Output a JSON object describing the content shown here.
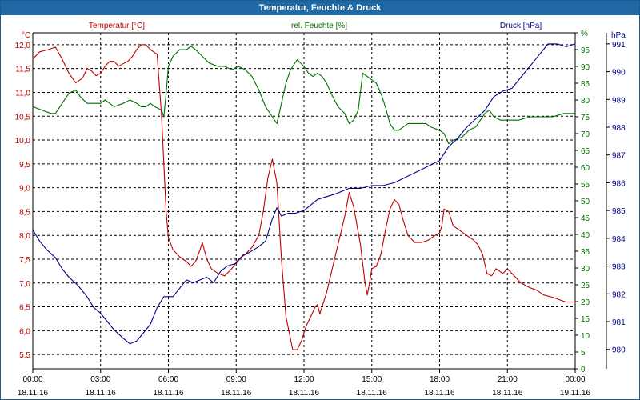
{
  "window": {
    "title": "Temperatur, Feuchte & Druck"
  },
  "colors": {
    "temperature": "#c00000",
    "humidity": "#007000",
    "pressure": "#00008b",
    "grid": "#000000",
    "title_bar": "#1f6aa5"
  },
  "chart_data": {
    "type": "line",
    "title": "Temperatur, Feuchte & Druck",
    "x": {
      "ticks": [
        {
          "t": 0,
          "time": "00:00",
          "date": "18.11.16"
        },
        {
          "t": 3,
          "time": "03:00",
          "date": "18.11.16"
        },
        {
          "t": 6,
          "time": "06:00",
          "date": "18.11.16"
        },
        {
          "t": 9,
          "time": "09:00",
          "date": "18.11.16"
        },
        {
          "t": 12,
          "time": "12:00",
          "date": "18.11.16"
        },
        {
          "t": 15,
          "time": "15:00",
          "date": "18.11.16"
        },
        {
          "t": 18,
          "time": "18:00",
          "date": "18.11.16"
        },
        {
          "t": 21,
          "time": "21:00",
          "date": "18.11.16"
        },
        {
          "t": 24,
          "time": "00:00",
          "date": "19.11.16"
        }
      ],
      "range": [
        0,
        24
      ],
      "unit": "h"
    },
    "axes": {
      "temperature": {
        "label": "Temperatur [°C]",
        "unit": "°C",
        "min": 5.2,
        "max": 12.25,
        "ticks": [
          5.5,
          6.0,
          6.5,
          7.0,
          7.5,
          8.0,
          8.5,
          9.0,
          9.5,
          10.0,
          10.5,
          11.0,
          11.5,
          12.0
        ],
        "tick_labels": [
          "5,5",
          "6,0",
          "6,5",
          "7,0",
          "7,5",
          "8,0",
          "8,5",
          "9,0",
          "9,5",
          "10,0",
          "10,5",
          "11,0",
          "11,5",
          "12,0"
        ]
      },
      "humidity": {
        "label": "rel. Feuchte [%]",
        "unit": "%",
        "min": 0,
        "max": 100,
        "ticks": [
          0,
          5,
          10,
          15,
          20,
          25,
          30,
          35,
          40,
          45,
          50,
          55,
          60,
          65,
          70,
          75,
          80,
          85,
          90,
          95,
          100
        ],
        "tick_labels": [
          "0",
          "5",
          "10",
          "15",
          "20",
          "25",
          "30",
          "35",
          "40",
          "45",
          "50",
          "55",
          "60",
          "65",
          "70",
          "75",
          "80",
          "85",
          "90",
          "95",
          "%"
        ]
      },
      "pressure": {
        "label": "Druck [hPa]",
        "unit": "hPa",
        "min": 979.3,
        "max": 991.4,
        "ticks": [
          980,
          981,
          982,
          983,
          984,
          985,
          986,
          987,
          988,
          989,
          990,
          991
        ],
        "tick_labels": [
          "980",
          "981",
          "982",
          "983",
          "984",
          "985",
          "986",
          "987",
          "988",
          "989",
          "990",
          "991"
        ]
      }
    },
    "grid": true,
    "series": [
      {
        "name": "Temperatur [°C]",
        "axis": "temperature",
        "color": "#c00000",
        "points": [
          [
            0,
            11.7
          ],
          [
            0.3,
            11.85
          ],
          [
            0.7,
            11.9
          ],
          [
            1.0,
            11.95
          ],
          [
            1.3,
            11.7
          ],
          [
            1.6,
            11.4
          ],
          [
            1.9,
            11.2
          ],
          [
            2.2,
            11.3
          ],
          [
            2.4,
            11.5
          ],
          [
            2.6,
            11.45
          ],
          [
            2.8,
            11.35
          ],
          [
            3.0,
            11.4
          ],
          [
            3.2,
            11.55
          ],
          [
            3.4,
            11.65
          ],
          [
            3.6,
            11.65
          ],
          [
            3.8,
            11.55
          ],
          [
            4.0,
            11.6
          ],
          [
            4.2,
            11.65
          ],
          [
            4.4,
            11.75
          ],
          [
            4.6,
            11.9
          ],
          [
            4.8,
            12.0
          ],
          [
            5.0,
            12.0
          ],
          [
            5.2,
            11.9
          ],
          [
            5.5,
            11.8
          ],
          [
            5.7,
            10.5
          ],
          [
            5.8,
            9.5
          ],
          [
            5.9,
            8.5
          ],
          [
            6.0,
            7.95
          ],
          [
            6.2,
            7.7
          ],
          [
            6.5,
            7.55
          ],
          [
            6.8,
            7.45
          ],
          [
            7.0,
            7.35
          ],
          [
            7.2,
            7.45
          ],
          [
            7.4,
            7.7
          ],
          [
            7.5,
            7.85
          ],
          [
            7.7,
            7.5
          ],
          [
            7.9,
            7.3
          ],
          [
            8.2,
            7.2
          ],
          [
            8.5,
            7.15
          ],
          [
            8.8,
            7.3
          ],
          [
            9.1,
            7.5
          ],
          [
            9.4,
            7.6
          ],
          [
            9.7,
            7.75
          ],
          [
            10.0,
            8.0
          ],
          [
            10.2,
            8.5
          ],
          [
            10.4,
            9.2
          ],
          [
            10.6,
            9.6
          ],
          [
            10.8,
            9.1
          ],
          [
            11.0,
            7.5
          ],
          [
            11.2,
            6.3
          ],
          [
            11.5,
            5.6
          ],
          [
            11.7,
            5.6
          ],
          [
            11.9,
            5.8
          ],
          [
            12.1,
            6.1
          ],
          [
            12.3,
            6.3
          ],
          [
            12.5,
            6.5
          ],
          [
            12.6,
            6.55
          ],
          [
            12.7,
            6.35
          ],
          [
            12.8,
            6.5
          ],
          [
            13.0,
            6.8
          ],
          [
            13.2,
            7.2
          ],
          [
            13.5,
            7.8
          ],
          [
            13.8,
            8.4
          ],
          [
            14.0,
            8.9
          ],
          [
            14.2,
            8.6
          ],
          [
            14.5,
            7.8
          ],
          [
            14.7,
            7.0
          ],
          [
            14.8,
            6.75
          ],
          [
            14.9,
            7.0
          ],
          [
            15.0,
            7.3
          ],
          [
            15.2,
            7.35
          ],
          [
            15.4,
            7.6
          ],
          [
            15.6,
            8.1
          ],
          [
            15.8,
            8.55
          ],
          [
            16.0,
            8.75
          ],
          [
            16.2,
            8.65
          ],
          [
            16.4,
            8.3
          ],
          [
            16.6,
            8.0
          ],
          [
            16.9,
            7.85
          ],
          [
            17.2,
            7.85
          ],
          [
            17.5,
            7.9
          ],
          [
            17.8,
            8.0
          ],
          [
            18.0,
            8.05
          ],
          [
            18.1,
            8.2
          ],
          [
            18.2,
            8.55
          ],
          [
            18.4,
            8.5
          ],
          [
            18.6,
            8.2
          ],
          [
            18.9,
            8.1
          ],
          [
            19.2,
            8.0
          ],
          [
            19.5,
            7.9
          ],
          [
            19.7,
            7.8
          ],
          [
            19.9,
            7.6
          ],
          [
            20.1,
            7.2
          ],
          [
            20.3,
            7.15
          ],
          [
            20.5,
            7.3
          ],
          [
            20.8,
            7.2
          ],
          [
            21.0,
            7.3
          ],
          [
            21.3,
            7.15
          ],
          [
            21.6,
            7.0
          ],
          [
            22.0,
            6.9
          ],
          [
            22.3,
            6.85
          ],
          [
            22.6,
            6.75
          ],
          [
            23.0,
            6.7
          ],
          [
            23.3,
            6.65
          ],
          [
            23.6,
            6.6
          ],
          [
            24.0,
            6.6
          ]
        ]
      },
      {
        "name": "rel. Feuchte [%]",
        "axis": "humidity",
        "color": "#007000",
        "points": [
          [
            0,
            78
          ],
          [
            0.4,
            77
          ],
          [
            0.8,
            76
          ],
          [
            1.0,
            76
          ],
          [
            1.3,
            79
          ],
          [
            1.6,
            82
          ],
          [
            1.9,
            83
          ],
          [
            2.1,
            81
          ],
          [
            2.4,
            79
          ],
          [
            2.8,
            79
          ],
          [
            3.0,
            79
          ],
          [
            3.2,
            80
          ],
          [
            3.4,
            79
          ],
          [
            3.6,
            78
          ],
          [
            4.0,
            79
          ],
          [
            4.3,
            80
          ],
          [
            4.6,
            79
          ],
          [
            4.8,
            78
          ],
          [
            5.0,
            78
          ],
          [
            5.2,
            79
          ],
          [
            5.4,
            78
          ],
          [
            5.7,
            77
          ],
          [
            5.8,
            75
          ],
          [
            5.9,
            82
          ],
          [
            6.0,
            90
          ],
          [
            6.2,
            93
          ],
          [
            6.5,
            95
          ],
          [
            6.8,
            95
          ],
          [
            7.0,
            96
          ],
          [
            7.2,
            95
          ],
          [
            7.5,
            93
          ],
          [
            7.8,
            91
          ],
          [
            8.2,
            90
          ],
          [
            8.5,
            90
          ],
          [
            8.8,
            89
          ],
          [
            9.1,
            90
          ],
          [
            9.4,
            89
          ],
          [
            9.7,
            87
          ],
          [
            10.0,
            83
          ],
          [
            10.3,
            78
          ],
          [
            10.6,
            75
          ],
          [
            10.8,
            73
          ],
          [
            11.0,
            79
          ],
          [
            11.2,
            85
          ],
          [
            11.4,
            89
          ],
          [
            11.7,
            92
          ],
          [
            12.0,
            90
          ],
          [
            12.2,
            88
          ],
          [
            12.4,
            87
          ],
          [
            12.6,
            88
          ],
          [
            12.8,
            87
          ],
          [
            13.0,
            85
          ],
          [
            13.2,
            82
          ],
          [
            13.5,
            78
          ],
          [
            13.8,
            76
          ],
          [
            14.0,
            73
          ],
          [
            14.2,
            74
          ],
          [
            14.4,
            77
          ],
          [
            14.6,
            88
          ],
          [
            14.8,
            87
          ],
          [
            15.0,
            86
          ],
          [
            15.2,
            85
          ],
          [
            15.4,
            82
          ],
          [
            15.6,
            78
          ],
          [
            15.8,
            73
          ],
          [
            16.0,
            71
          ],
          [
            16.2,
            71
          ],
          [
            16.4,
            72
          ],
          [
            16.6,
            73
          ],
          [
            17.0,
            73
          ],
          [
            17.4,
            73
          ],
          [
            17.6,
            72
          ],
          [
            18.0,
            71
          ],
          [
            18.2,
            70
          ],
          [
            18.4,
            67
          ],
          [
            18.6,
            68
          ],
          [
            19.0,
            69
          ],
          [
            19.3,
            71
          ],
          [
            19.6,
            72
          ],
          [
            19.8,
            74
          ],
          [
            20.0,
            76
          ],
          [
            20.2,
            77
          ],
          [
            20.4,
            75
          ],
          [
            20.7,
            74
          ],
          [
            21.0,
            74
          ],
          [
            21.5,
            74
          ],
          [
            22.0,
            75
          ],
          [
            22.5,
            75
          ],
          [
            23.0,
            75
          ],
          [
            23.5,
            76
          ],
          [
            24.0,
            76
          ]
        ]
      },
      {
        "name": "Druck [hPa]",
        "axis": "pressure",
        "color": "#00008b",
        "points": [
          [
            0,
            984.3
          ],
          [
            0.3,
            983.9
          ],
          [
            0.6,
            983.6
          ],
          [
            1.0,
            983.3
          ],
          [
            1.3,
            982.9
          ],
          [
            1.6,
            982.6
          ],
          [
            2.0,
            982.3
          ],
          [
            2.4,
            981.9
          ],
          [
            2.7,
            981.5
          ],
          [
            3.0,
            981.3
          ],
          [
            3.3,
            981.0
          ],
          [
            3.6,
            980.7
          ],
          [
            4.0,
            980.4
          ],
          [
            4.3,
            980.2
          ],
          [
            4.6,
            980.3
          ],
          [
            4.9,
            980.6
          ],
          [
            5.2,
            980.9
          ],
          [
            5.5,
            981.5
          ],
          [
            5.8,
            981.9
          ],
          [
            6.2,
            981.9
          ],
          [
            6.5,
            982.2
          ],
          [
            6.8,
            982.5
          ],
          [
            7.1,
            982.4
          ],
          [
            7.4,
            982.5
          ],
          [
            7.7,
            982.6
          ],
          [
            8.0,
            982.4
          ],
          [
            8.3,
            982.8
          ],
          [
            8.6,
            983.0
          ],
          [
            9.0,
            983.1
          ],
          [
            9.3,
            983.4
          ],
          [
            9.6,
            983.5
          ],
          [
            10.0,
            983.7
          ],
          [
            10.3,
            983.9
          ],
          [
            10.6,
            984.7
          ],
          [
            10.8,
            985.1
          ],
          [
            11.0,
            984.8
          ],
          [
            11.3,
            984.9
          ],
          [
            11.6,
            984.9
          ],
          [
            12.0,
            985.0
          ],
          [
            12.3,
            985.2
          ],
          [
            12.6,
            985.4
          ],
          [
            13.0,
            985.5
          ],
          [
            13.4,
            985.6
          ],
          [
            13.7,
            985.7
          ],
          [
            14.0,
            985.8
          ],
          [
            14.5,
            985.8
          ],
          [
            15.0,
            985.9
          ],
          [
            15.5,
            985.9
          ],
          [
            16.0,
            986.0
          ],
          [
            16.5,
            986.2
          ],
          [
            17.0,
            986.4
          ],
          [
            17.5,
            986.6
          ],
          [
            18.0,
            986.8
          ],
          [
            18.4,
            987.3
          ],
          [
            18.8,
            987.6
          ],
          [
            19.2,
            988.0
          ],
          [
            19.6,
            988.3
          ],
          [
            20.0,
            988.6
          ],
          [
            20.4,
            989.1
          ],
          [
            20.8,
            989.3
          ],
          [
            21.2,
            989.4
          ],
          [
            21.6,
            989.8
          ],
          [
            22.0,
            990.2
          ],
          [
            22.4,
            990.6
          ],
          [
            22.8,
            991.0
          ],
          [
            23.2,
            991.0
          ],
          [
            23.6,
            990.9
          ],
          [
            24.0,
            991.0
          ]
        ]
      }
    ]
  }
}
